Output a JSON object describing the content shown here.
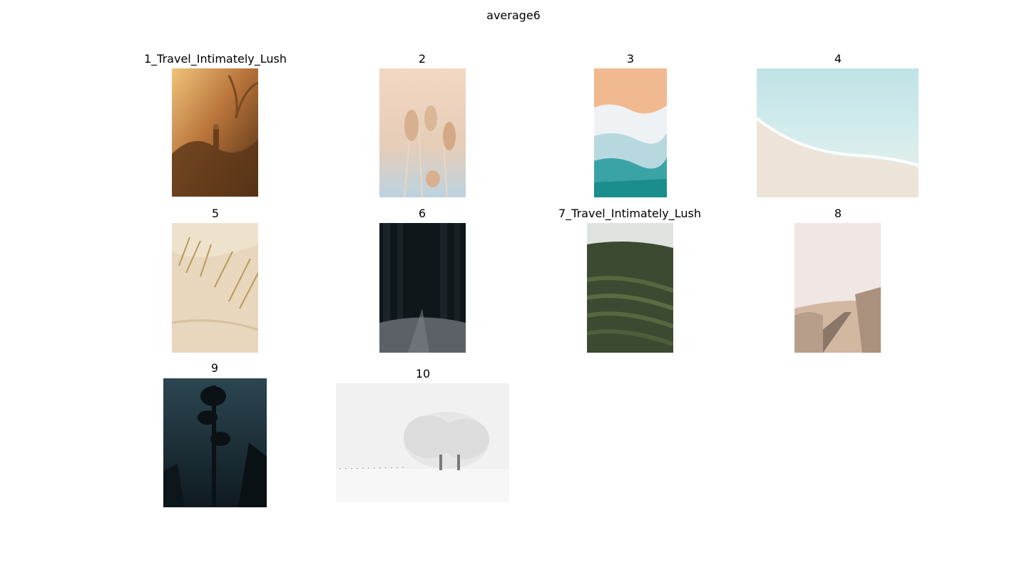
{
  "figure": {
    "title": "average6"
  },
  "thumbnails": [
    {
      "label": "1_Travel_Intimately_Lush",
      "image": "jungle-sunlit-person-photo"
    },
    {
      "label": "2",
      "image": "pampas-grass-pastel-photo"
    },
    {
      "label": "3",
      "image": "aerial-beach-waves-photo"
    },
    {
      "label": "4",
      "image": "shallow-turquoise-shore-photo"
    },
    {
      "label": "5",
      "image": "sand-dune-grass-photo"
    },
    {
      "label": "6",
      "image": "dark-forest-path-photo"
    },
    {
      "label": "7_Travel_Intimately_Lush",
      "image": "rice-terraces-palms-photo"
    },
    {
      "label": "8",
      "image": "boardwalk-dunes-photo"
    },
    {
      "label": "9",
      "image": "misty-pine-silhouette-photo"
    },
    {
      "label": "10",
      "image": "snowy-trees-field-photo"
    }
  ]
}
